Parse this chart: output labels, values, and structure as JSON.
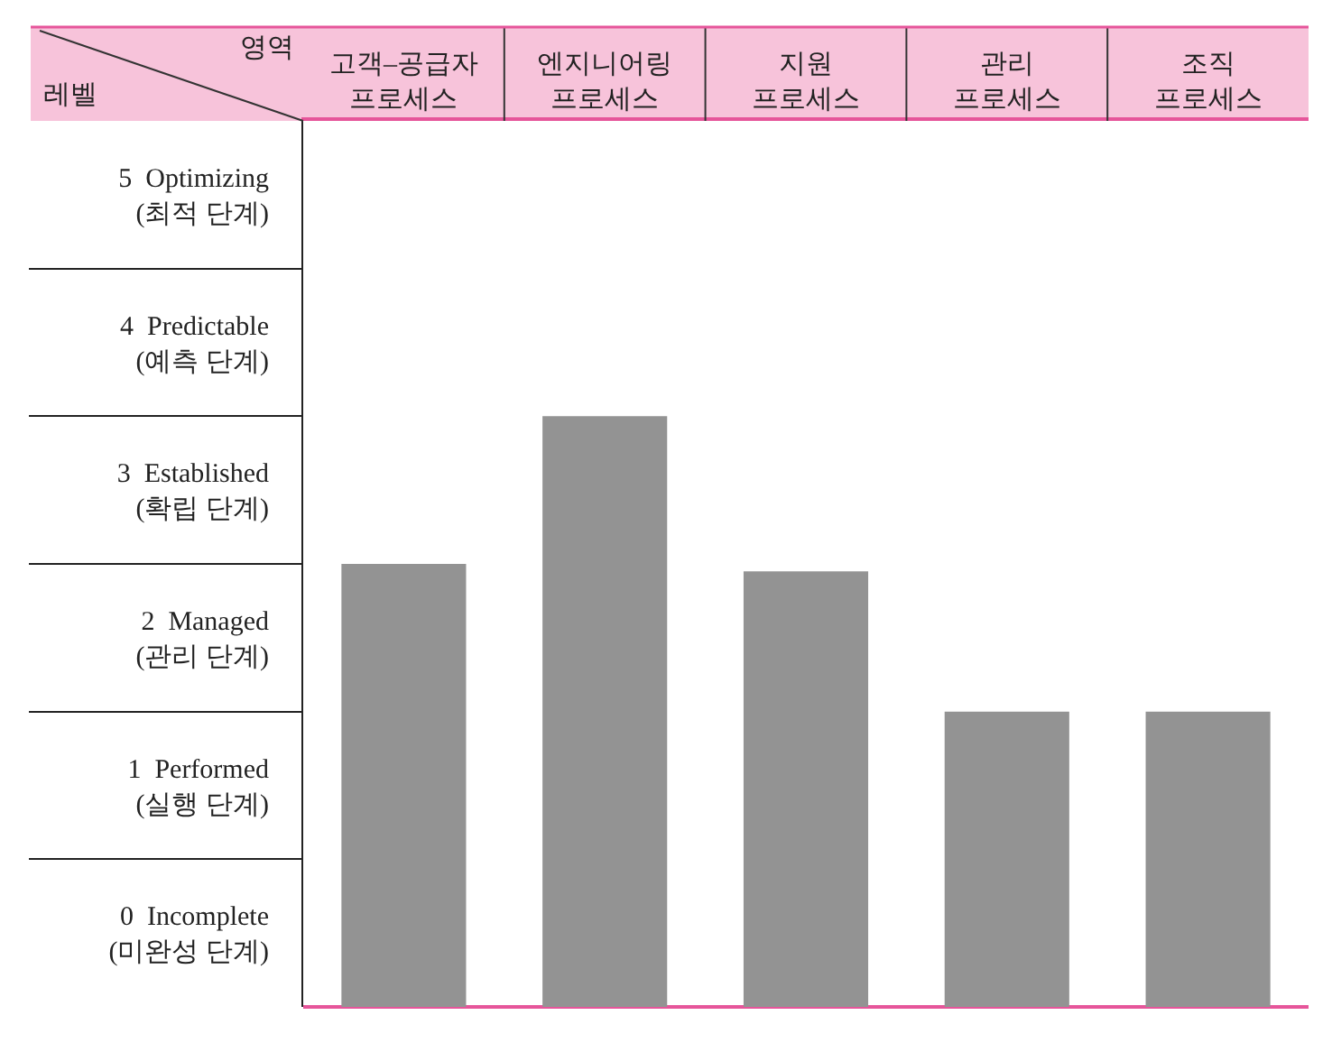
{
  "chart_data": {
    "type": "bar",
    "xlabel": "영역",
    "ylabel": "레벨",
    "categories": [
      "고객–공급자\n프로세스",
      "엔지니어링\n프로세스",
      "지원\n프로세스",
      "관리\n프로세스",
      "조직\n프로세스"
    ],
    "values": [
      3,
      4,
      2.95,
      2,
      2
    ],
    "color": "#939393",
    "ylim": [
      0,
      6
    ],
    "yticks": [
      {
        "value": 0.5,
        "label": "0  Incomplete\n(미완성 단계)"
      },
      {
        "value": 1.5,
        "label": "1  Performed\n(실행 단계)"
      },
      {
        "value": 2.5,
        "label": "2  Managed\n(관리 단계)"
      },
      {
        "value": 3.5,
        "label": "3  Established\n(확립 단계)"
      },
      {
        "value": 4.5,
        "label": "4  Predictable\n(예측 단계)"
      },
      {
        "value": 5.5,
        "label": "5  Optimizing\n(최적 단계)"
      }
    ]
  }
}
